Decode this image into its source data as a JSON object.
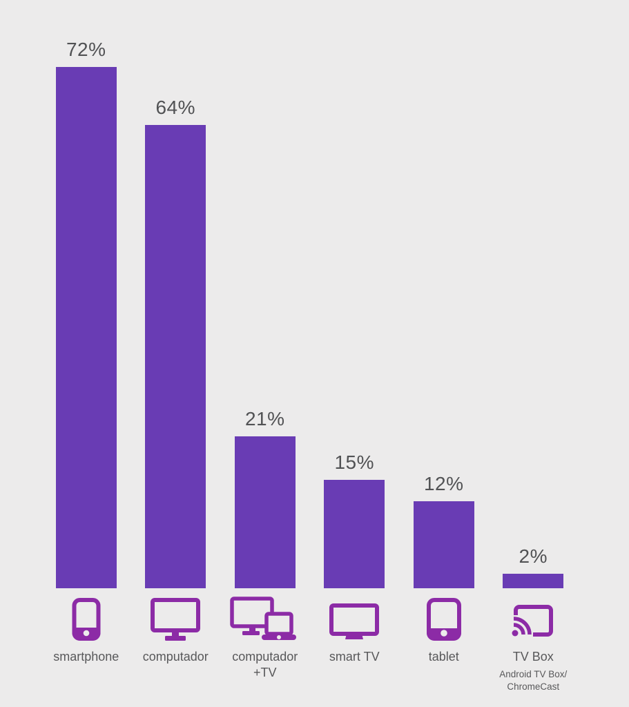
{
  "chart_data": {
    "type": "bar",
    "title": "",
    "unit": "%",
    "categories": [
      "smartphone",
      "computador",
      "computador +TV",
      "smart TV",
      "tablet",
      "TV Box"
    ],
    "values": [
      72,
      64,
      21,
      15,
      12,
      2
    ],
    "ylim": [
      0,
      78
    ],
    "grid": false,
    "legend": "none",
    "bars": [
      {
        "value": 72,
        "value_label": "72%",
        "icon": "smartphone-icon",
        "label_lines": [
          "smartphone"
        ],
        "sublabel_lines": []
      },
      {
        "value": 64,
        "value_label": "64%",
        "icon": "monitor-icon",
        "label_lines": [
          "computador"
        ],
        "sublabel_lines": []
      },
      {
        "value": 21,
        "value_label": "21%",
        "icon": "monitor-laptop-icon",
        "label_lines": [
          "computador",
          "+TV"
        ],
        "sublabel_lines": []
      },
      {
        "value": 15,
        "value_label": "15%",
        "icon": "tv-icon",
        "label_lines": [
          "smart TV"
        ],
        "sublabel_lines": []
      },
      {
        "value": 12,
        "value_label": "12%",
        "icon": "tablet-icon",
        "label_lines": [
          "tablet"
        ],
        "sublabel_lines": []
      },
      {
        "value": 2,
        "value_label": "2%",
        "icon": "cast-icon",
        "label_lines": [
          "TV Box"
        ],
        "sublabel_lines": [
          "Android TV Box/",
          "ChromeCast"
        ]
      }
    ],
    "colors": {
      "bar": "#693cb4",
      "icon": "#8c2ba6",
      "background": "#ecebeb",
      "value_text": "#515254",
      "label_text": "#58585a"
    }
  }
}
